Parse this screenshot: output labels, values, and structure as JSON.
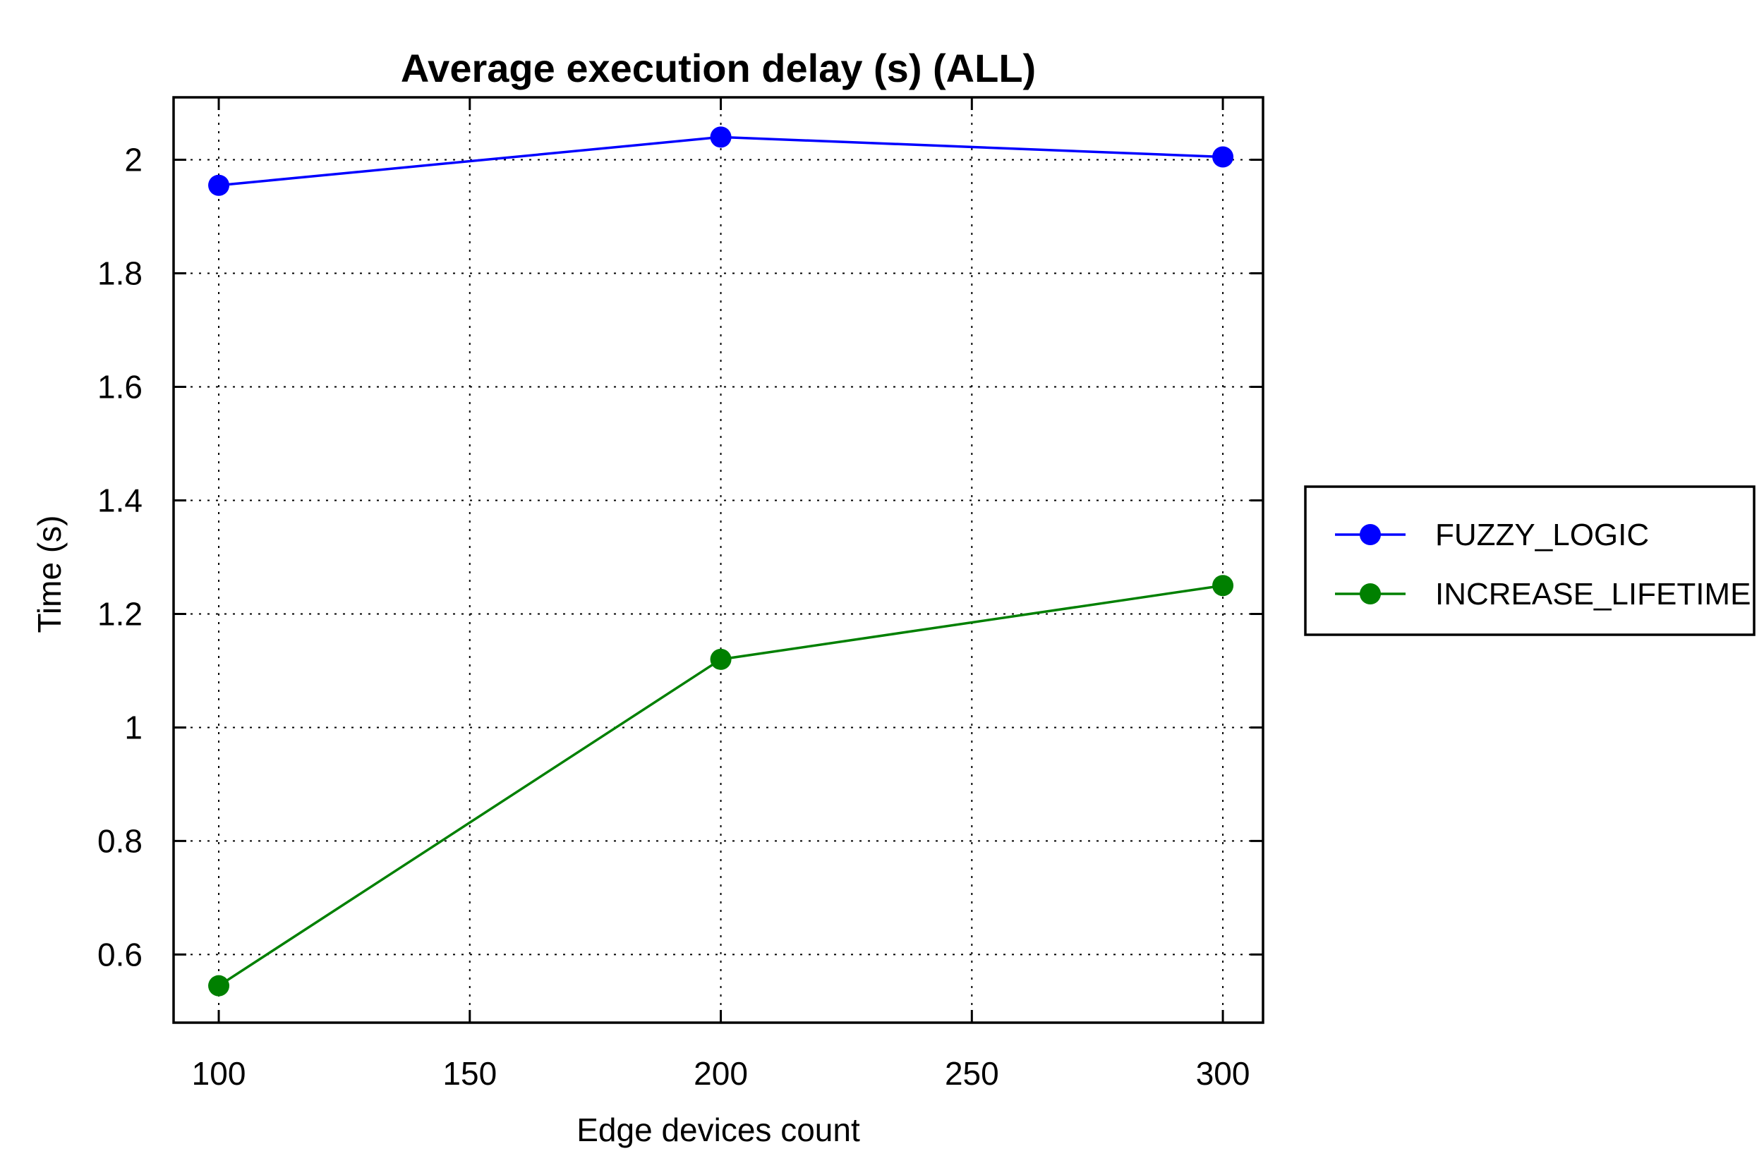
{
  "chart_data": {
    "type": "line",
    "title": "Average execution delay (s) (ALL)",
    "xlabel": "Edge devices count",
    "ylabel": "Time (s)",
    "x": [
      100,
      200,
      300
    ],
    "xlim": [
      91,
      308
    ],
    "ylim": [
      0.48,
      2.11
    ],
    "xticks": [
      100,
      150,
      200,
      250,
      300
    ],
    "yticks": [
      0.6,
      0.8,
      1,
      1.2,
      1.4,
      1.6,
      1.8,
      2
    ],
    "xtick_labels": [
      "100",
      "150",
      "200",
      "250",
      "300"
    ],
    "ytick_labels": [
      "0.6",
      "0.8",
      "1",
      "1.2",
      "1.4",
      "1.6",
      "1.8",
      "2"
    ],
    "grid": true,
    "legend_position": "outside-right",
    "series": [
      {
        "name": "FUZZY_LOGIC",
        "color": "#0000ff",
        "values": [
          1.955,
          2.04,
          2.005
        ],
        "marker": "circle"
      },
      {
        "name": "INCREASE_LIFETIME",
        "color": "#008000",
        "values": [
          0.545,
          1.12,
          1.25
        ],
        "marker": "circle"
      }
    ]
  }
}
